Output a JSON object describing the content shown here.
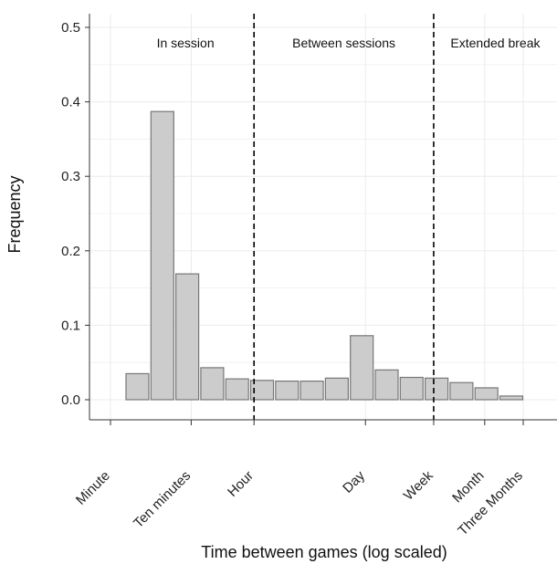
{
  "chart_data": {
    "type": "bar",
    "title": "",
    "xlabel": "Time between games (log scaled)",
    "ylabel": "Frequency",
    "ylim": [
      0,
      0.5
    ],
    "y_ticks": [
      0.0,
      0.1,
      0.2,
      0.3,
      0.4,
      0.5
    ],
    "y_tick_labels": [
      "0.0",
      "0.1",
      "0.2",
      "0.3",
      "0.4",
      "0.5"
    ],
    "x_scale": "log",
    "x_ticks": [
      {
        "label": "Minute",
        "seconds": 60
      },
      {
        "label": "Ten minutes",
        "seconds": 600
      },
      {
        "label": "Hour",
        "seconds": 3600
      },
      {
        "label": "Day",
        "seconds": 86400
      },
      {
        "label": "Week",
        "seconds": 604800
      },
      {
        "label": "Month",
        "seconds": 2592000
      },
      {
        "label": "Three Months",
        "seconds": 7776000
      }
    ],
    "bars": [
      0.035,
      0.387,
      0.169,
      0.043,
      0.028,
      0.026,
      0.025,
      0.025,
      0.029,
      0.086,
      0.04,
      0.03,
      0.029,
      0.023,
      0.016,
      0.005
    ],
    "vertical_lines_seconds": [
      3600,
      604800
    ],
    "regions": [
      {
        "label": "In session"
      },
      {
        "label": "Between sessions"
      },
      {
        "label": "Extended break"
      }
    ],
    "grid": true,
    "colors": {
      "bar_fill": "#cccccc",
      "bar_stroke": "#777777",
      "grid": "#ebebeb",
      "divider": "#000000"
    }
  }
}
